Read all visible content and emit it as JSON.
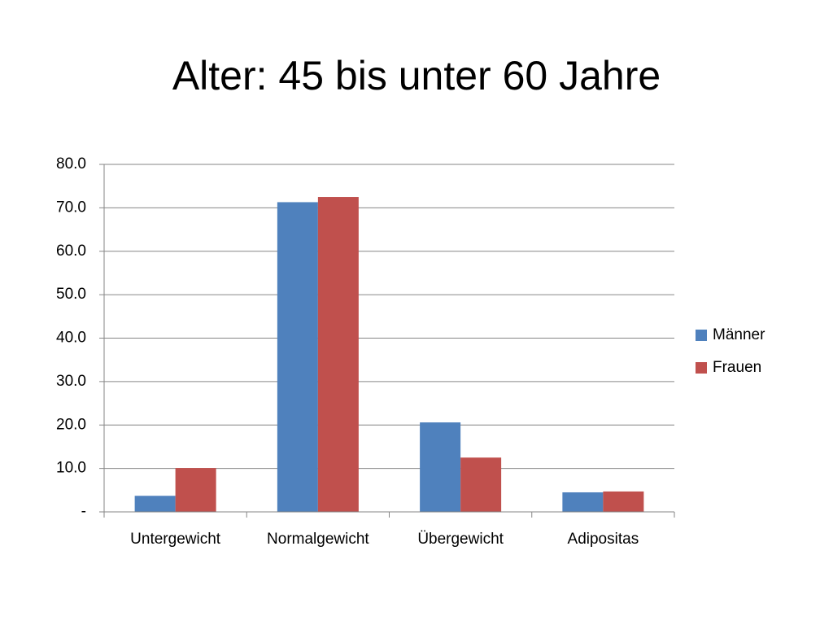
{
  "chart_data": {
    "type": "bar",
    "title": "Alter: 45 bis unter 60 Jahre",
    "categories": [
      "Untergewicht",
      "Normalgewicht",
      "Übergewicht",
      "Adipositas"
    ],
    "series": [
      {
        "name": "Männer",
        "color": "#4f81bd",
        "values": [
          3.7,
          71.3,
          20.6,
          4.5
        ]
      },
      {
        "name": "Frauen",
        "color": "#c0504d",
        "values": [
          10.1,
          72.5,
          12.5,
          4.7
        ]
      }
    ],
    "ylim": [
      0,
      80
    ],
    "yticks": [
      {
        "value": 0,
        "label": "-"
      },
      {
        "value": 10,
        "label": "10.0"
      },
      {
        "value": 20,
        "label": "20.0"
      },
      {
        "value": 30,
        "label": "30.0"
      },
      {
        "value": 40,
        "label": "40.0"
      },
      {
        "value": 50,
        "label": "50.0"
      },
      {
        "value": 60,
        "label": "60.0"
      },
      {
        "value": 70,
        "label": "70.0"
      },
      {
        "value": 80,
        "label": "80.0"
      }
    ],
    "grid": true,
    "legend": "right"
  }
}
